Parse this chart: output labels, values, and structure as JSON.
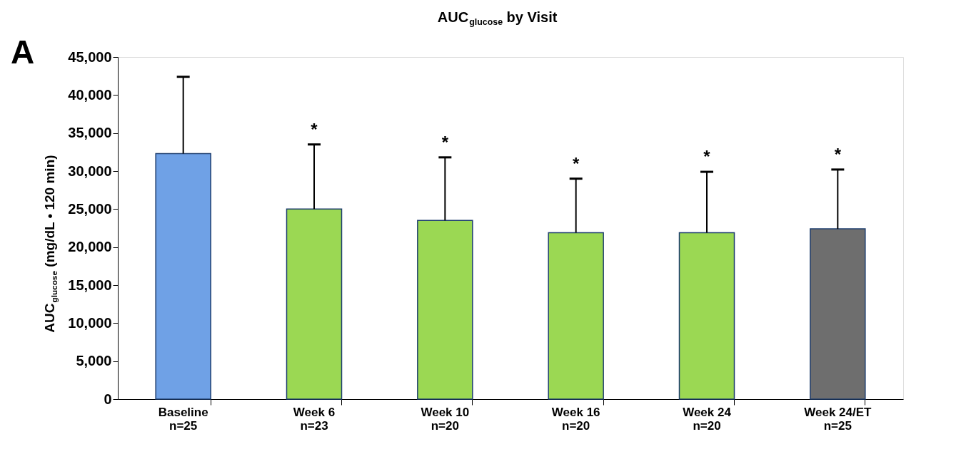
{
  "chart_data": {
    "type": "bar",
    "title": "AUC$_{glucose}$ by Visit",
    "ylabel": "AUC$_{glucose}$ (mg/dL • 120 min)",
    "categories": [
      "Baseline\nn=25",
      "Week 6\nn=23",
      "Week 10\nn=20",
      "Week 16\nn=20",
      "Week 24\nn=20",
      "Week 24/ET\nn=25"
    ],
    "values": [
      32300,
      25000,
      23500,
      21900,
      21900,
      22400
    ],
    "errors": [
      [
        32300,
        42400
      ],
      [
        25000,
        33500
      ],
      [
        23500,
        31800
      ],
      [
        21900,
        29000
      ],
      [
        21900,
        29900
      ],
      [
        22400,
        30200
      ]
    ],
    "colors": [
      "#6fa1e6",
      "#9bd853",
      "#9bd853",
      "#9bd853",
      "#9bd853",
      "#6e6e6e"
    ],
    "ylim": [
      0,
      45000
    ],
    "yticks": [
      {
        "value": 0,
        "label": "0"
      },
      {
        "value": 5000,
        "label": "5,000"
      },
      {
        "value": 10000,
        "label": "10,000"
      },
      {
        "value": 15000,
        "label": "15,000"
      },
      {
        "value": 20000,
        "label": "20,000"
      },
      {
        "value": 25000,
        "label": "25,000"
      },
      {
        "value": 30000,
        "label": "30,000"
      },
      {
        "value": 35000,
        "label": "35,000"
      },
      {
        "value": 40000,
        "label": "40,000"
      },
      {
        "value": 45000,
        "label": "45,000"
      }
    ],
    "grid": false,
    "annotations": [
      "A",
      "*",
      "*",
      "*",
      "*",
      "*"
    ]
  }
}
